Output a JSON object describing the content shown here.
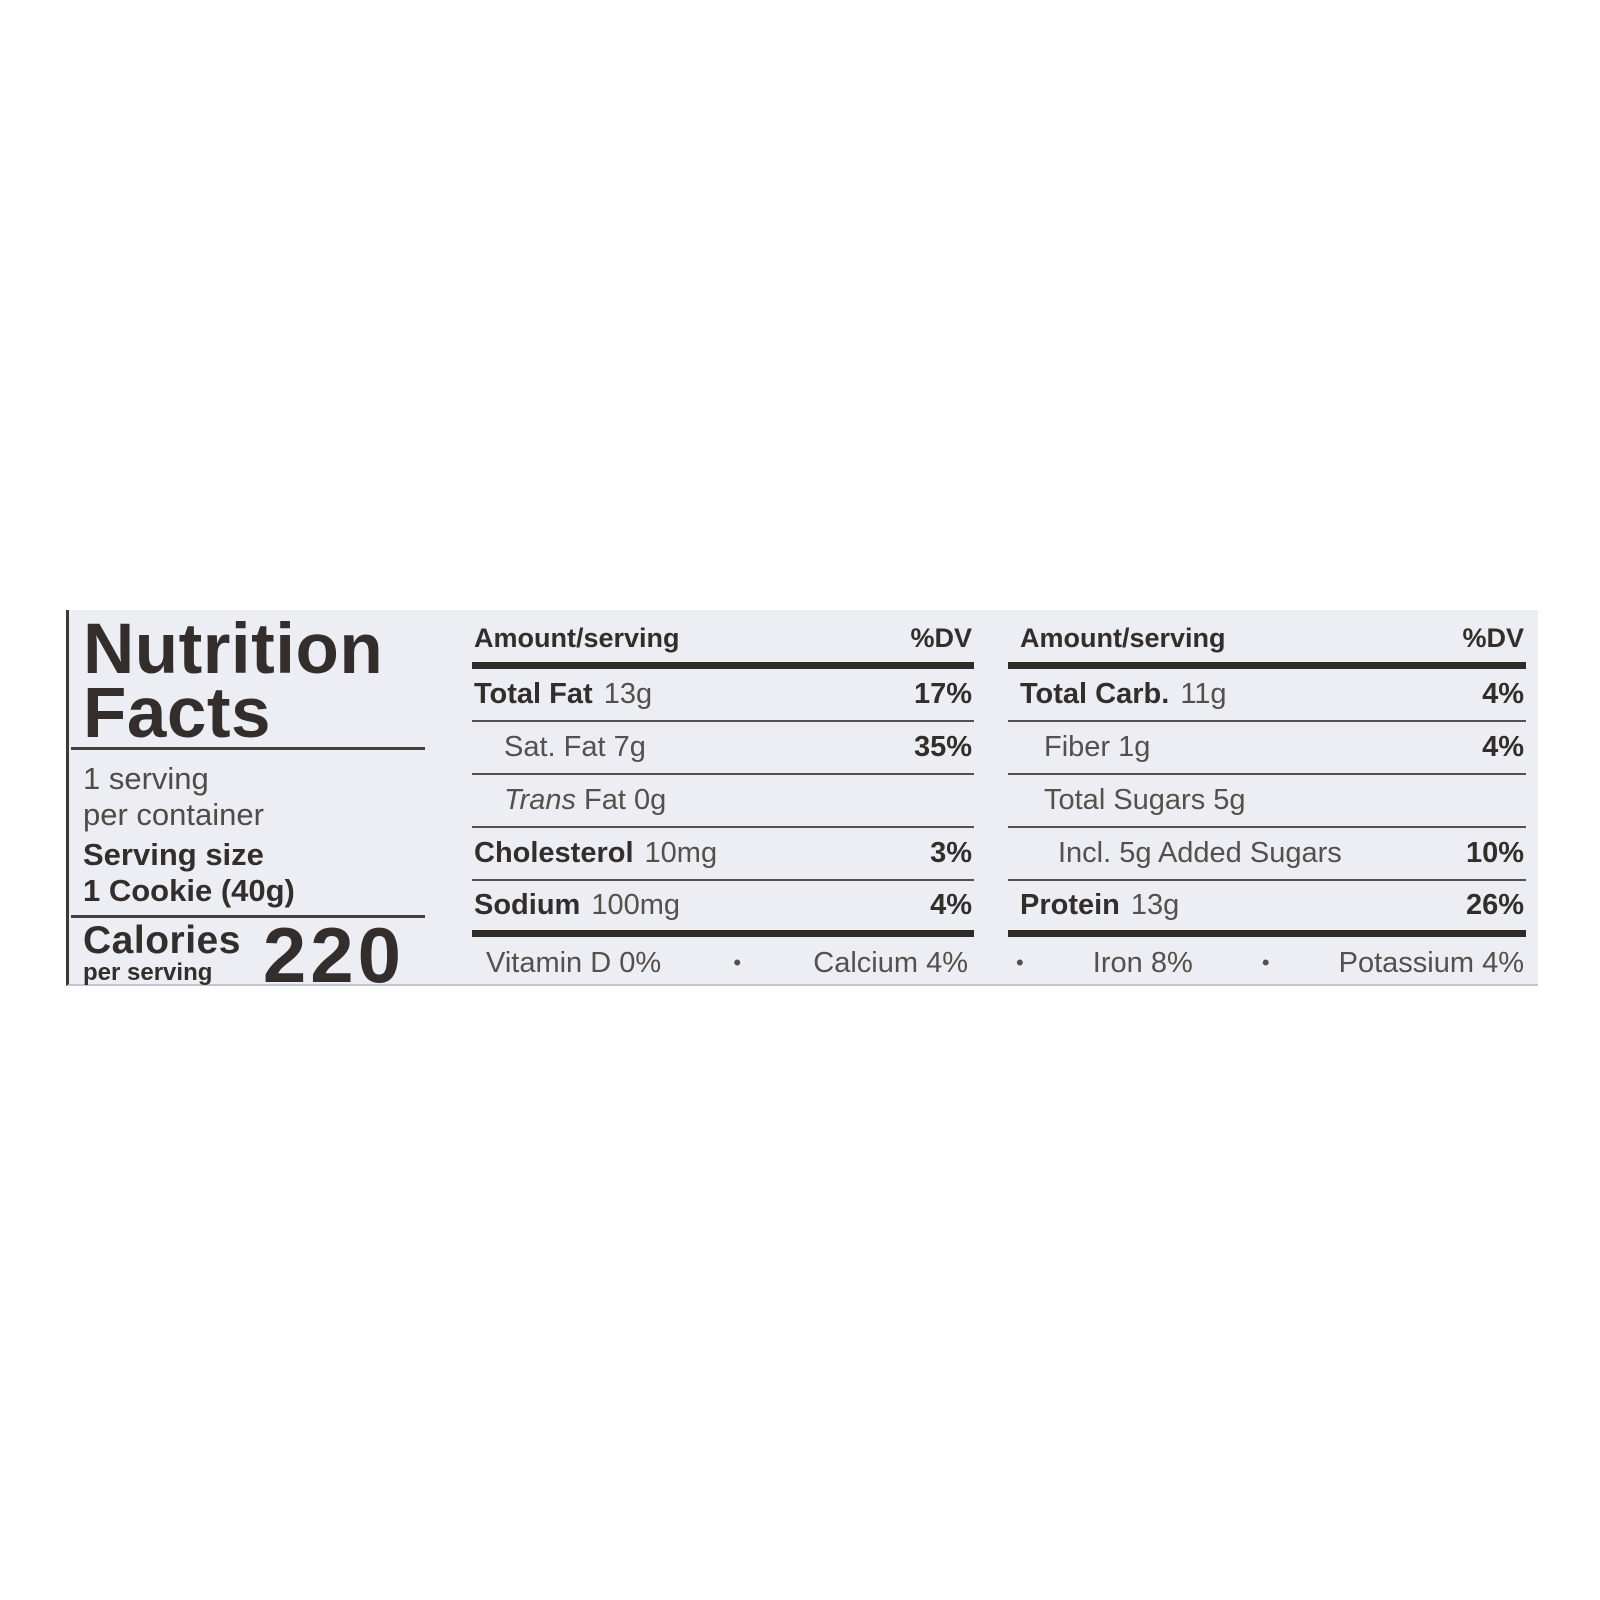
{
  "bullet": "•",
  "panel": {
    "title_line1": "Nutrition",
    "title_line2": "Facts",
    "servings_line1": "1 serving",
    "servings_line2": "per container",
    "serving_size_label": "Serving size",
    "serving_size_value": "1 Cookie (40g)",
    "calories_label": "Calories",
    "calories_sublabel": "per serving",
    "calories_value": "220"
  },
  "columns": [
    {
      "header": {
        "amount_label": "Amount/serving",
        "dv_label": "%DV"
      },
      "rows": [
        {
          "name": "Total Fat",
          "amount": "13g",
          "dv": "17%"
        },
        {
          "name": "Sat. Fat 7g",
          "amount": "",
          "dv": "35%"
        },
        {
          "name_italic": "Trans",
          "name_rest": " Fat 0g",
          "amount": "",
          "dv": ""
        },
        {
          "name": "Cholesterol",
          "amount": "10mg",
          "dv": "3%"
        },
        {
          "name": "Sodium",
          "amount": "100mg",
          "dv": "4%"
        }
      ],
      "footer_items": [
        "Vitamin D 0%",
        "Calcium 4%"
      ]
    },
    {
      "header": {
        "amount_label": "Amount/serving",
        "dv_label": "%DV"
      },
      "rows": [
        {
          "name": "Total Carb.",
          "amount": "11g",
          "dv": "4%"
        },
        {
          "name": "Fiber 1g",
          "amount": "",
          "dv": "4%"
        },
        {
          "name": "Total Sugars 5g",
          "amount": "",
          "dv": ""
        },
        {
          "name": "Incl. 5g Added Sugars",
          "amount": "",
          "dv": "10%"
        },
        {
          "name": "Protein",
          "amount": "13g",
          "dv": "26%"
        }
      ],
      "footer_items": [
        "Iron 8%",
        "Potassium 4%"
      ]
    }
  ]
}
